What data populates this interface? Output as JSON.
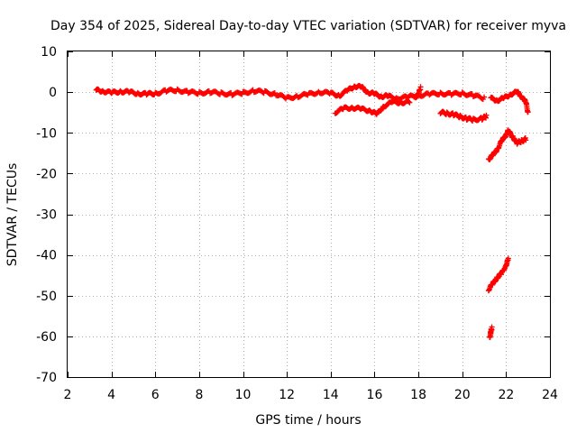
{
  "chart_data": {
    "type": "scatter",
    "title": "Day 354 of 2025, Sidereal Day-to-day VTEC variation (SDTVAR) for receiver myva",
    "xlabel": "GPS time / hours",
    "ylabel": "SDTVAR / TECUs",
    "xlim": [
      2,
      24
    ],
    "ylim": [
      -70,
      10
    ],
    "xticks": [
      2,
      4,
      6,
      8,
      10,
      12,
      14,
      16,
      18,
      20,
      22,
      24
    ],
    "yticks": [
      10,
      0,
      -10,
      -20,
      -30,
      -40,
      -50,
      -60,
      -70
    ],
    "grid": true,
    "marker": "+",
    "series": [
      {
        "name": "SDTVAR",
        "color": "#ff0000",
        "segments": [
          [
            [
              3.3,
              0.5
            ],
            [
              3.6,
              0.3
            ],
            [
              4.0,
              -0.2
            ],
            [
              4.4,
              0.2
            ],
            [
              4.8,
              0.0
            ],
            [
              5.2,
              -0.3
            ],
            [
              5.6,
              -0.5
            ],
            [
              6.0,
              -0.3
            ],
            [
              6.5,
              0.3
            ],
            [
              7.0,
              0.5
            ],
            [
              7.5,
              0.0
            ],
            [
              8.0,
              -0.2
            ],
            [
              8.5,
              0.0
            ],
            [
              9.0,
              -0.3
            ],
            [
              9.5,
              -0.5
            ],
            [
              10.0,
              -0.2
            ],
            [
              10.5,
              0.3
            ],
            [
              11.0,
              0.0
            ],
            [
              11.5,
              -0.5
            ],
            [
              12.0,
              -1.5
            ],
            [
              12.5,
              -1.0
            ],
            [
              13.0,
              -0.5
            ],
            [
              13.5,
              0.0
            ],
            [
              14.0,
              -0.3
            ],
            [
              14.4,
              -0.8
            ],
            [
              14.8,
              0.5
            ],
            [
              15.1,
              1.5
            ],
            [
              15.4,
              1.2
            ],
            [
              15.7,
              0.0
            ],
            [
              16.0,
              -0.5
            ],
            [
              16.3,
              -1.0
            ],
            [
              16.6,
              -1.0
            ],
            [
              17.0,
              -1.5
            ],
            [
              17.5,
              -1.2
            ],
            [
              18.0,
              -0.8
            ],
            [
              18.5,
              -0.5
            ],
            [
              19.0,
              -0.3
            ],
            [
              19.5,
              -0.5
            ],
            [
              20.0,
              -0.3
            ],
            [
              20.5,
              -0.8
            ],
            [
              21.0,
              -1.5
            ]
          ],
          [
            [
              14.2,
              -5.0
            ],
            [
              14.6,
              -4.0
            ],
            [
              15.0,
              -3.8
            ],
            [
              15.4,
              -4.2
            ],
            [
              15.8,
              -4.5
            ],
            [
              16.1,
              -5.5
            ],
            [
              16.4,
              -3.5
            ],
            [
              16.8,
              -2.5
            ],
            [
              17.2,
              -2.5
            ],
            [
              17.6,
              -2.5
            ]
          ],
          [
            [
              17.8,
              -1.5
            ],
            [
              18.0,
              -0.5
            ],
            [
              18.1,
              1.0
            ]
          ],
          [
            [
              19.0,
              -5.0
            ],
            [
              19.3,
              -5.2
            ],
            [
              19.6,
              -5.5
            ],
            [
              19.9,
              -6.0
            ],
            [
              20.2,
              -6.5
            ],
            [
              20.5,
              -6.8
            ],
            [
              20.9,
              -6.5
            ],
            [
              21.1,
              -6.0
            ]
          ],
          [
            [
              21.2,
              -16.5
            ],
            [
              21.4,
              -15.5
            ],
            [
              21.6,
              -14.0
            ],
            [
              21.8,
              -12.0
            ],
            [
              22.0,
              -10.5
            ],
            [
              22.1,
              -9.5
            ],
            [
              22.3,
              -11.0
            ],
            [
              22.5,
              -12.5
            ],
            [
              22.7,
              -12.0
            ],
            [
              22.9,
              -11.5
            ]
          ],
          [
            [
              21.3,
              -1.5
            ],
            [
              21.6,
              -2.0
            ],
            [
              21.9,
              -1.5
            ],
            [
              22.2,
              -0.5
            ],
            [
              22.5,
              0.0
            ],
            [
              22.7,
              -1.0
            ],
            [
              22.9,
              -2.5
            ],
            [
              23.0,
              -5.0
            ]
          ],
          [
            [
              21.2,
              -48.5
            ],
            [
              21.4,
              -47.0
            ],
            [
              21.6,
              -45.5
            ],
            [
              21.8,
              -44.5
            ],
            [
              22.0,
              -42.5
            ],
            [
              22.1,
              -41.0
            ]
          ],
          [
            [
              21.25,
              -60.5
            ],
            [
              21.3,
              -59.0
            ],
            [
              21.35,
              -58.0
            ]
          ]
        ]
      }
    ]
  }
}
